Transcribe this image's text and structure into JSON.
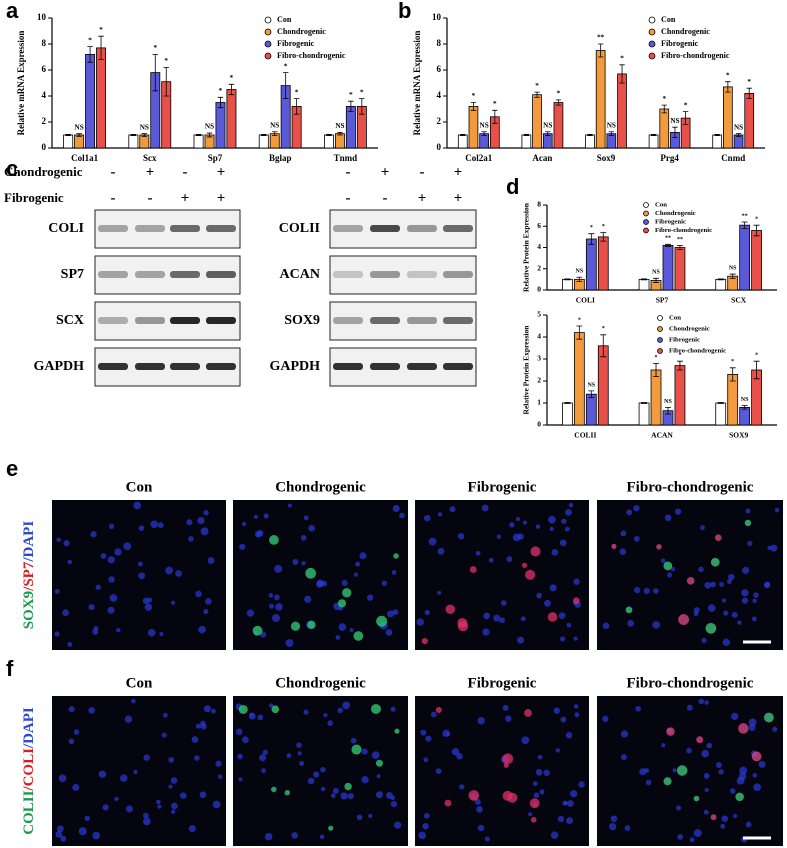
{
  "panel_labels": [
    "a",
    "b",
    "c",
    "d",
    "e",
    "f"
  ],
  "chart_data": [
    {
      "type": "bar",
      "ylabel": "Relative mRNA Expression",
      "categories": [
        "Col1a1",
        "Scx",
        "Sp7",
        "Bglap",
        "Tnmd"
      ],
      "ylim": [
        0,
        10
      ],
      "yticks": [
        0,
        2,
        4,
        6,
        8,
        10
      ],
      "series": [
        {
          "name": "Con",
          "color": "#ffffff",
          "values": [
            1,
            1,
            1,
            1,
            1
          ],
          "errors": [
            0.05,
            0.05,
            0.05,
            0.05,
            0.05
          ]
        },
        {
          "name": "Chondrogenic",
          "color": "#f39a3c",
          "values": [
            1,
            1,
            1,
            1.1,
            1.1
          ],
          "errors": [
            0.1,
            0.1,
            0.15,
            0.15,
            0.1
          ],
          "annotations": [
            "NS",
            "NS",
            "NS",
            "NS",
            "NS"
          ]
        },
        {
          "name": "Fibrogenic",
          "color": "#5a5ad8",
          "values": [
            7.2,
            5.8,
            3.5,
            4.8,
            3.2
          ],
          "errors": [
            0.6,
            1.4,
            0.4,
            1.0,
            0.4
          ],
          "annotations": [
            "*",
            "*",
            "*",
            "*",
            "*"
          ]
        },
        {
          "name": "Fibro-chondrogenic",
          "color": "#e8504a",
          "values": [
            7.7,
            5.1,
            4.5,
            3.2,
            3.2
          ],
          "errors": [
            0.9,
            1.1,
            0.4,
            0.6,
            0.6
          ],
          "annotations": [
            "*",
            "*",
            "*",
            "*",
            "*"
          ]
        }
      ]
    },
    {
      "type": "bar",
      "ylabel": "Relative mRNA Expression",
      "categories": [
        "Col2a1",
        "Acan",
        "Sox9",
        "Prg4",
        "Cnmd"
      ],
      "ylim": [
        0,
        10
      ],
      "yticks": [
        0,
        2,
        4,
        6,
        8,
        10
      ],
      "series": [
        {
          "name": "Con",
          "color": "#ffffff",
          "values": [
            1,
            1,
            1,
            1,
            1
          ],
          "errors": [
            0.05,
            0.05,
            0.05,
            0.05,
            0.05
          ]
        },
        {
          "name": "Chondrogenic",
          "color": "#f39a3c",
          "values": [
            3.2,
            4.1,
            7.5,
            3.0,
            4.7
          ],
          "errors": [
            0.3,
            0.2,
            0.5,
            0.3,
            0.4
          ],
          "annotations": [
            "*",
            "*",
            "**",
            "*",
            "*"
          ]
        },
        {
          "name": "Fibrogenic",
          "color": "#5a5ad8",
          "values": [
            1.1,
            1.1,
            1.1,
            1.2,
            1.0
          ],
          "errors": [
            0.15,
            0.15,
            0.15,
            0.4,
            0.1
          ],
          "annotations": [
            "NS",
            "NS",
            "NS",
            "NS",
            "NS"
          ]
        },
        {
          "name": "Fibro-chondrogenic",
          "color": "#e8504a",
          "values": [
            2.4,
            3.5,
            5.7,
            2.3,
            4.2
          ],
          "errors": [
            0.5,
            0.2,
            0.7,
            0.5,
            0.4
          ],
          "annotations": [
            "*",
            "*",
            "*",
            "*",
            "*"
          ]
        }
      ]
    },
    {
      "type": "bar",
      "ylabel": "Relative Protein Expression",
      "categories": [
        "COLI",
        "SP7",
        "SCX"
      ],
      "ylim": [
        0,
        8
      ],
      "yticks": [
        0,
        2,
        4,
        6,
        8
      ],
      "series": [
        {
          "name": "Con",
          "color": "#ffffff",
          "values": [
            1,
            1,
            1
          ],
          "errors": [
            0.05,
            0.05,
            0.05
          ]
        },
        {
          "name": "Chondrogenic",
          "color": "#f39a3c",
          "values": [
            1,
            0.9,
            1.3
          ],
          "errors": [
            0.2,
            0.2,
            0.2
          ],
          "annotations": [
            "NS",
            "NS",
            "NS"
          ]
        },
        {
          "name": "Fibrogenic",
          "color": "#5a5ad8",
          "values": [
            4.8,
            4.2,
            6.1
          ],
          "errors": [
            0.5,
            0.1,
            0.3
          ],
          "annotations": [
            "*",
            "**",
            "**"
          ]
        },
        {
          "name": "Fibro-chondrogenic",
          "color": "#e8504a",
          "values": [
            5.0,
            4.0,
            5.6
          ],
          "errors": [
            0.4,
            0.2,
            0.5
          ],
          "annotations": [
            "*",
            "**",
            "*"
          ]
        }
      ]
    },
    {
      "type": "bar",
      "ylabel": "Relative Protein Expression",
      "categories": [
        "COLII",
        "ACAN",
        "SOX9"
      ],
      "ylim": [
        0,
        5
      ],
      "yticks": [
        0,
        1,
        2,
        3,
        4,
        5
      ],
      "series": [
        {
          "name": "Con",
          "color": "#ffffff",
          "values": [
            1,
            1,
            1
          ],
          "errors": [
            0.02,
            0.02,
            0.02
          ]
        },
        {
          "name": "Chondrogenic",
          "color": "#f39a3c",
          "values": [
            4.2,
            2.5,
            2.3
          ],
          "errors": [
            0.3,
            0.3,
            0.3
          ],
          "annotations": [
            "*",
            "*",
            "*"
          ]
        },
        {
          "name": "Fibrogenic",
          "color": "#5a5ad8",
          "values": [
            1.4,
            0.65,
            0.8
          ],
          "errors": [
            0.15,
            0.15,
            0.08
          ],
          "annotations": [
            "NS",
            "NS",
            "NS"
          ]
        },
        {
          "name": "Fibro-chondrogenic",
          "color": "#e8504a",
          "values": [
            3.6,
            2.7,
            2.5
          ],
          "errors": [
            0.5,
            0.2,
            0.4
          ],
          "annotations": [
            "*",
            "*",
            "*"
          ]
        }
      ]
    }
  ],
  "blots": {
    "conditions": [
      "Chondrogenic",
      "Fibrogenic"
    ],
    "left": {
      "signs": [
        [
          "-",
          "+",
          "-",
          "+"
        ],
        [
          "-",
          "-",
          "+",
          "+"
        ]
      ],
      "proteins": [
        "COLI",
        "SP7",
        "SCX",
        "GAPDH"
      ]
    },
    "right": {
      "signs": [
        [
          "-",
          "+",
          "-",
          "+"
        ],
        [
          "-",
          "-",
          "+",
          "+"
        ]
      ],
      "proteins": [
        "COLII",
        "ACAN",
        "SOX9",
        "GAPDH"
      ]
    }
  },
  "images": [
    {
      "stain": [
        {
          "text": "SOX9",
          "color": "#1a9a4a"
        },
        {
          "text": "/SP7",
          "color": "#d42020"
        },
        {
          "text": "/DAPI",
          "color": "#2a4ad0"
        }
      ],
      "columns": [
        "Con",
        "Chondrogenic",
        "Fibrogenic",
        "Fibro-chondrogenic"
      ]
    },
    {
      "stain": [
        {
          "text": "COLII",
          "color": "#1a9a4a"
        },
        {
          "text": "/COLI",
          "color": "#d42020"
        },
        {
          "text": "/DAPI",
          "color": "#2a4ad0"
        }
      ],
      "columns": [
        "Con",
        "Chondrogenic",
        "Fibrogenic",
        "Fibro-chondrogenic"
      ]
    }
  ]
}
